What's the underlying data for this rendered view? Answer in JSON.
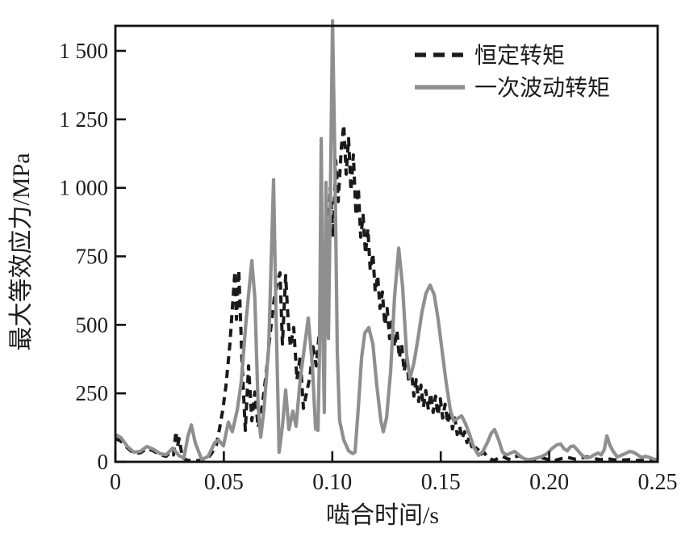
{
  "figure": {
    "background": "#ffffff",
    "frame_color": "#111111",
    "text_color": "#1c1c1c"
  },
  "chart_data": {
    "type": "line",
    "title": "",
    "xlabel": "啮合时间/s",
    "ylabel": "最大等效应力/MPa",
    "xlim": [
      0,
      0.25
    ],
    "ylim": [
      0,
      1500
    ],
    "grid": false,
    "legend_position": "top-right-inside",
    "x_ticks": [
      0,
      0.05,
      0.1,
      0.15,
      0.2,
      0.25
    ],
    "x_tick_labels": [
      "0",
      "0.05",
      "0.10",
      "0.15",
      "0.20",
      "0.25"
    ],
    "y_ticks": [
      0,
      250,
      500,
      750,
      1000,
      1250,
      1500
    ],
    "y_tick_labels": [
      "0",
      "250",
      "500",
      "750",
      "1 000",
      "1 250",
      "1 500"
    ],
    "series": [
      {
        "name": "恒定转矩",
        "style": "dashed",
        "color": "#1a1a1a",
        "width": 4,
        "dash": "10 7",
        "points": [
          [
            0,
            85
          ],
          [
            0.0026,
            75
          ],
          [
            0.0056,
            50
          ],
          [
            0.0086,
            30
          ],
          [
            0.0115,
            33
          ],
          [
            0.0145,
            48
          ],
          [
            0.0175,
            40
          ],
          [
            0.0205,
            26
          ],
          [
            0.0234,
            20
          ],
          [
            0.0253,
            35
          ],
          [
            0.0268,
            25
          ],
          [
            0.0279,
            112
          ],
          [
            0.0286,
            55
          ],
          [
            0.0294,
            85
          ],
          [
            0.0309,
            15
          ],
          [
            0.0331,
            6
          ],
          [
            0.0361,
            4
          ],
          [
            0.039,
            5
          ],
          [
            0.042,
            8
          ],
          [
            0.0443,
            30
          ],
          [
            0.0465,
            60
          ],
          [
            0.048,
            120
          ],
          [
            0.0495,
            190
          ],
          [
            0.051,
            280
          ],
          [
            0.0528,
            430
          ],
          [
            0.0551,
            695
          ],
          [
            0.0558,
            520
          ],
          [
            0.0569,
            700
          ],
          [
            0.0584,
            360
          ],
          [
            0.0599,
            115
          ],
          [
            0.0614,
            350
          ],
          [
            0.0629,
            150
          ],
          [
            0.0643,
            255
          ],
          [
            0.0658,
            125
          ],
          [
            0.0677,
            205
          ],
          [
            0.0696,
            330
          ],
          [
            0.0714,
            470
          ],
          [
            0.0733,
            600
          ],
          [
            0.0748,
            660
          ],
          [
            0.0759,
            690
          ],
          [
            0.077,
            430
          ],
          [
            0.0785,
            680
          ],
          [
            0.0796,
            520
          ],
          [
            0.0807,
            420
          ],
          [
            0.0822,
            490
          ],
          [
            0.0837,
            300
          ],
          [
            0.0852,
            385
          ],
          [
            0.0867,
            195
          ],
          [
            0.0882,
            255
          ],
          [
            0.0897,
            310
          ],
          [
            0.0911,
            420
          ],
          [
            0.0926,
            350
          ],
          [
            0.0941,
            480
          ],
          [
            0.0956,
            580
          ],
          [
            0.0967,
            760
          ],
          [
            0.0978,
            620
          ],
          [
            0.099,
            1000
          ],
          [
            0.1004,
            820
          ],
          [
            0.1016,
            1100
          ],
          [
            0.1027,
            950
          ],
          [
            0.1042,
            1150
          ],
          [
            0.1053,
            1230
          ],
          [
            0.1064,
            1050
          ],
          [
            0.1075,
            1180
          ],
          [
            0.1086,
            990
          ],
          [
            0.1097,
            1120
          ],
          [
            0.1109,
            900
          ],
          [
            0.112,
            1000
          ],
          [
            0.1131,
            820
          ],
          [
            0.1142,
            900
          ],
          [
            0.1153,
            760
          ],
          [
            0.1164,
            850
          ],
          [
            0.1175,
            700
          ],
          [
            0.1187,
            760
          ],
          [
            0.1198,
            620
          ],
          [
            0.1209,
            680
          ],
          [
            0.122,
            560
          ],
          [
            0.1231,
            620
          ],
          [
            0.1242,
            500
          ],
          [
            0.1253,
            560
          ],
          [
            0.1264,
            450
          ],
          [
            0.1276,
            520
          ],
          [
            0.1287,
            420
          ],
          [
            0.1298,
            480
          ],
          [
            0.1309,
            380
          ],
          [
            0.132,
            430
          ],
          [
            0.1331,
            330
          ],
          [
            0.1342,
            380
          ],
          [
            0.1353,
            290
          ],
          [
            0.1365,
            330
          ],
          [
            0.1376,
            240
          ],
          [
            0.1387,
            300
          ],
          [
            0.1398,
            220
          ],
          [
            0.1409,
            280
          ],
          [
            0.142,
            200
          ],
          [
            0.1431,
            260
          ],
          [
            0.1443,
            190
          ],
          [
            0.1454,
            250
          ],
          [
            0.1465,
            180
          ],
          [
            0.1476,
            240
          ],
          [
            0.1487,
            170
          ],
          [
            0.1498,
            230
          ],
          [
            0.1509,
            160
          ],
          [
            0.152,
            210
          ],
          [
            0.1532,
            140
          ],
          [
            0.1543,
            190
          ],
          [
            0.1554,
            120
          ],
          [
            0.1565,
            160
          ],
          [
            0.1576,
            100
          ],
          [
            0.1587,
            130
          ],
          [
            0.1598,
            85
          ],
          [
            0.161,
            110
          ],
          [
            0.1621,
            70
          ],
          [
            0.1632,
            90
          ],
          [
            0.1643,
            55
          ],
          [
            0.1654,
            70
          ],
          [
            0.1665,
            40
          ],
          [
            0.1676,
            50
          ],
          [
            0.1687,
            28
          ],
          [
            0.1699,
            35
          ],
          [
            0.1714,
            18
          ],
          [
            0.1729,
            10
          ],
          [
            0.1748,
            6
          ],
          [
            0.1766,
            14
          ],
          [
            0.1785,
            20
          ],
          [
            0.1804,
            12
          ],
          [
            0.1823,
            8
          ],
          [
            0.1841,
            18
          ],
          [
            0.186,
            22
          ],
          [
            0.1878,
            14
          ],
          [
            0.19,
            8
          ],
          [
            0.1923,
            6
          ],
          [
            0.1945,
            10
          ],
          [
            0.1971,
            14
          ],
          [
            0.1997,
            8
          ],
          [
            0.2027,
            6
          ],
          [
            0.2057,
            12
          ],
          [
            0.2087,
            16
          ],
          [
            0.2117,
            10
          ],
          [
            0.2147,
            14
          ],
          [
            0.2176,
            18
          ],
          [
            0.2206,
            12
          ],
          [
            0.2236,
            8
          ],
          [
            0.2266,
            12
          ],
          [
            0.2295,
            8
          ],
          [
            0.2332,
            6
          ],
          [
            0.237,
            8
          ],
          [
            0.2407,
            5
          ],
          [
            0.2444,
            6
          ],
          [
            0.25,
            5
          ]
        ]
      },
      {
        "name": "一次波动转矩",
        "style": "solid",
        "color": "#8f8f8f",
        "width": 4.2,
        "dash": "",
        "points": [
          [
            0,
            100
          ],
          [
            0.0026,
            88
          ],
          [
            0.0056,
            55
          ],
          [
            0.0086,
            35
          ],
          [
            0.0115,
            38
          ],
          [
            0.0145,
            56
          ],
          [
            0.0175,
            46
          ],
          [
            0.0205,
            30
          ],
          [
            0.0234,
            26
          ],
          [
            0.0264,
            50
          ],
          [
            0.0294,
            22
          ],
          [
            0.0316,
            14
          ],
          [
            0.0335,
            95
          ],
          [
            0.035,
            135
          ],
          [
            0.0368,
            70
          ],
          [
            0.0398,
            8
          ],
          [
            0.0428,
            20
          ],
          [
            0.0458,
            70
          ],
          [
            0.0476,
            80
          ],
          [
            0.0498,
            58
          ],
          [
            0.0521,
            145
          ],
          [
            0.0539,
            110
          ],
          [
            0.0562,
            190
          ],
          [
            0.058,
            290
          ],
          [
            0.0603,
            520
          ],
          [
            0.0629,
            734
          ],
          [
            0.0643,
            600
          ],
          [
            0.0658,
            200
          ],
          [
            0.067,
            90
          ],
          [
            0.0685,
            190
          ],
          [
            0.0707,
            420
          ],
          [
            0.0729,
            1030
          ],
          [
            0.074,
            560
          ],
          [
            0.0755,
            35
          ],
          [
            0.077,
            130
          ],
          [
            0.0785,
            262
          ],
          [
            0.08,
            118
          ],
          [
            0.0818,
            185
          ],
          [
            0.0833,
            130
          ],
          [
            0.0852,
            300
          ],
          [
            0.0889,
            525
          ],
          [
            0.0908,
            350
          ],
          [
            0.0923,
            120
          ],
          [
            0.0934,
            115
          ],
          [
            0.0941,
            400
          ],
          [
            0.0949,
            1180
          ],
          [
            0.0956,
            500
          ],
          [
            0.0963,
            180
          ],
          [
            0.0971,
            1020
          ],
          [
            0.0982,
            450
          ],
          [
            0.099,
            900
          ],
          [
            0.1001,
            1610
          ],
          [
            0.1012,
            1100
          ],
          [
            0.1023,
            400
          ],
          [
            0.1034,
            150
          ],
          [
            0.1053,
            80
          ],
          [
            0.1075,
            40
          ],
          [
            0.1094,
            30
          ],
          [
            0.1105,
            35
          ],
          [
            0.112,
            200
          ],
          [
            0.1135,
            380
          ],
          [
            0.115,
            470
          ],
          [
            0.1168,
            490
          ],
          [
            0.1187,
            430
          ],
          [
            0.1205,
            280
          ],
          [
            0.1224,
            150
          ],
          [
            0.1235,
            110
          ],
          [
            0.125,
            160
          ],
          [
            0.1269,
            330
          ],
          [
            0.1287,
            600
          ],
          [
            0.1306,
            780
          ],
          [
            0.1324,
            640
          ],
          [
            0.1343,
            390
          ],
          [
            0.1358,
            305
          ],
          [
            0.1376,
            360
          ],
          [
            0.1395,
            450
          ],
          [
            0.1413,
            545
          ],
          [
            0.1432,
            615
          ],
          [
            0.1451,
            645
          ],
          [
            0.147,
            610
          ],
          [
            0.1488,
            520
          ],
          [
            0.1507,
            400
          ],
          [
            0.1525,
            290
          ],
          [
            0.1544,
            190
          ],
          [
            0.1559,
            150
          ],
          [
            0.1577,
            158
          ],
          [
            0.1596,
            168
          ],
          [
            0.1614,
            140
          ],
          [
            0.1633,
            100
          ],
          [
            0.1651,
            55
          ],
          [
            0.1674,
            24
          ],
          [
            0.1692,
            35
          ],
          [
            0.1715,
            70
          ],
          [
            0.1733,
            105
          ],
          [
            0.1748,
            118
          ],
          [
            0.1767,
            80
          ],
          [
            0.1785,
            35
          ],
          [
            0.1804,
            25
          ],
          [
            0.1823,
            32
          ],
          [
            0.1841,
            38
          ],
          [
            0.186,
            25
          ],
          [
            0.1878,
            14
          ],
          [
            0.19,
            8
          ],
          [
            0.1923,
            10
          ],
          [
            0.1945,
            14
          ],
          [
            0.1967,
            20
          ],
          [
            0.199,
            30
          ],
          [
            0.2012,
            48
          ],
          [
            0.2035,
            62
          ],
          [
            0.2053,
            65
          ],
          [
            0.2068,
            48
          ],
          [
            0.2083,
            40
          ],
          [
            0.2098,
            55
          ],
          [
            0.2113,
            58
          ],
          [
            0.2131,
            42
          ],
          [
            0.215,
            25
          ],
          [
            0.2169,
            14
          ],
          [
            0.2187,
            16
          ],
          [
            0.2206,
            25
          ],
          [
            0.2225,
            32
          ],
          [
            0.224,
            25
          ],
          [
            0.2254,
            45
          ],
          [
            0.2266,
            95
          ],
          [
            0.228,
            60
          ],
          [
            0.2295,
            38
          ],
          [
            0.2314,
            18
          ],
          [
            0.2332,
            24
          ],
          [
            0.2351,
            30
          ],
          [
            0.237,
            38
          ],
          [
            0.2388,
            35
          ],
          [
            0.2407,
            26
          ],
          [
            0.2426,
            16
          ],
          [
            0.2444,
            20
          ],
          [
            0.2463,
            16
          ],
          [
            0.2481,
            10
          ],
          [
            0.25,
            8
          ]
        ]
      }
    ]
  }
}
